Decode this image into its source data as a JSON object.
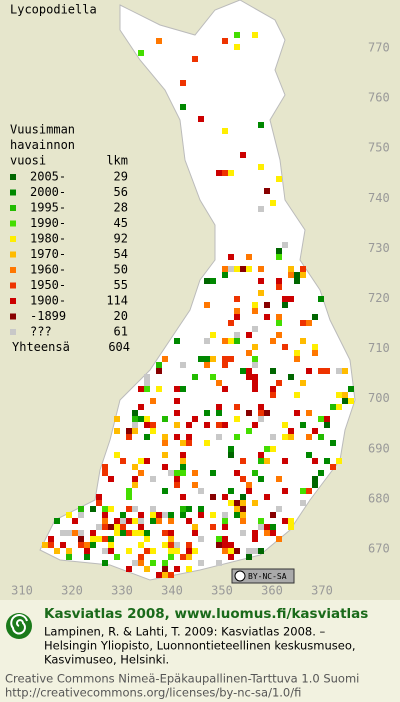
{
  "title": "Lycopodiella",
  "legend": {
    "heading": [
      "Vuusimman",
      "havainnon",
      "vuosi"
    ],
    "count_heading": "lkm",
    "entries": [
      {
        "label": "2005-",
        "count": 29,
        "color": "#006600"
      },
      {
        "label": "2000-",
        "count": 56,
        "color": "#008800"
      },
      {
        "label": "1995-",
        "count": 28,
        "color": "#22bb00"
      },
      {
        "label": "1990-",
        "count": 45,
        "color": "#44dd00"
      },
      {
        "label": "1980-",
        "count": 92,
        "color": "#ffee00"
      },
      {
        "label": "1970-",
        "count": 54,
        "color": "#ffbb00"
      },
      {
        "label": "1960-",
        "count": 50,
        "color": "#ff7700"
      },
      {
        "label": "1950-",
        "count": 55,
        "color": "#ee3300"
      },
      {
        "label": "1900-",
        "count": 114,
        "color": "#cc0000"
      },
      {
        "label": "-1899",
        "count": 20,
        "color": "#880000"
      },
      {
        "label": "???",
        "count": 61,
        "color": "#c8c8c8"
      }
    ],
    "total_label": "Yhteensä",
    "total": 604
  },
  "y_axis_labels": [
    "770",
    "760",
    "750",
    "740",
    "730",
    "720",
    "710",
    "700",
    "690",
    "680",
    "670"
  ],
  "x_axis_labels": [
    "310",
    "320",
    "330",
    "340",
    "350",
    "360",
    "370"
  ],
  "license_badge": "BY-NC-SA",
  "footer": {
    "site": "Kasviatlas 2008, www.luomus.fi/kasviatlas",
    "citation": [
      "Lampinen, R. & Lahti, T. 2009: Kasviatlas 2008. –",
      "Helsingin Yliopisto, Luonnontieteellinen keskusmuseo,",
      "Kasvimuseo, Helsinki."
    ],
    "license": [
      "Creative Commons Nimeä-Epäkaupallinen-Tarttuva 1.0 Suomi",
      "http://creativecommons.org/licenses/by-nc-sa/1.0/fi"
    ]
  }
}
